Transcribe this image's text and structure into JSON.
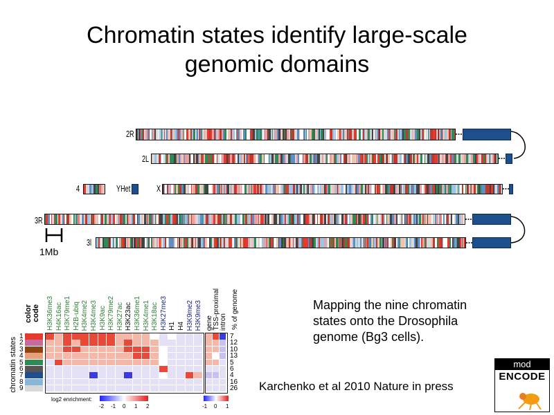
{
  "slide": {
    "title_line1": "Chromatin states identify large-scale",
    "title_line2": "genomic domains"
  },
  "chromosomes": {
    "labels": [
      "2R",
      "2L",
      "4",
      "YHet",
      "X",
      "3R",
      "3l"
    ],
    "scale_label": "1Mb"
  },
  "heatmap": {
    "color_code_label": [
      "color",
      "code"
    ],
    "y_axis_label": "chromatin states",
    "state_numbers": [
      "1",
      "2",
      "3",
      "4",
      "5",
      "6",
      "7",
      "8",
      "9"
    ],
    "state_colors": [
      "#e8392e",
      "#c46a9c",
      "#8b4513",
      "#e8a07a",
      "#2e8b57",
      "#555555",
      "#1f4e8c",
      "#87b6d8",
      "#d8d8d8"
    ],
    "marks": [
      {
        "name": "H3K36me3",
        "color": "#2e7d32"
      },
      {
        "name": "H4K16ac",
        "color": "#2e7d32"
      },
      {
        "name": "H3K79me1",
        "color": "#2e7d32"
      },
      {
        "name": "H2B-ubiq",
        "color": "#2e7d32"
      },
      {
        "name": "H3K4me2",
        "color": "#2e7d32"
      },
      {
        "name": "H3K4me3",
        "color": "#2e7d32"
      },
      {
        "name": "H3K9ac",
        "color": "#2e7d32"
      },
      {
        "name": "H3K79me2",
        "color": "#2e7d32"
      },
      {
        "name": "H3K27ac",
        "color": "#2e7d32"
      },
      {
        "name": "H3K23ac",
        "color": "#000000"
      },
      {
        "name": "H3K36me1",
        "color": "#2e7d32"
      },
      {
        "name": "H3K4me1",
        "color": "#2e7d32"
      },
      {
        "name": "H3K18ac",
        "color": "#2e7d32"
      },
      {
        "name": "H3K27me3",
        "color": "#1a237e"
      },
      {
        "name": "H1",
        "color": "#000000"
      },
      {
        "name": "H4",
        "color": "#000000"
      },
      {
        "name": "H3K9me2",
        "color": "#1a237e"
      },
      {
        "name": "H3K9me3",
        "color": "#1a237e"
      }
    ],
    "side_columns": [
      "gene",
      "TSS-proximal",
      "intron"
    ],
    "pct_label": "% of genome",
    "pct_values": [
      "7",
      "12",
      "10",
      "13",
      "5",
      "6",
      "4",
      "16",
      "26"
    ],
    "legend1_label": "log2 enrichment:",
    "legend1_ticks": [
      "-2",
      "-1",
      "0",
      "1",
      "2"
    ],
    "legend2_ticks": [
      "-1",
      "0",
      "1"
    ]
  },
  "caption": {
    "line1": "Mapping the nine chromatin",
    "line2": "states onto the Drosophila",
    "line3": "genome (Bg3 cells)."
  },
  "reference": "Karchenko et al 2010 Nature in press",
  "logo": {
    "top": "mod",
    "bottom": "ENCODE"
  }
}
